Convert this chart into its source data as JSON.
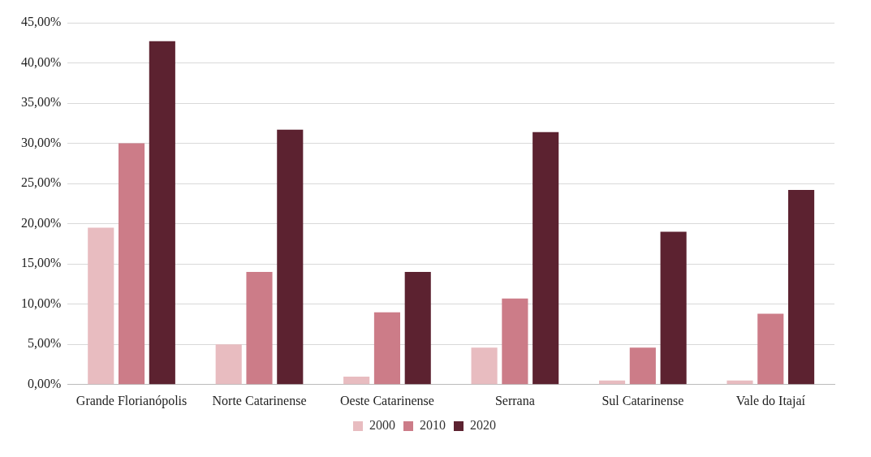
{
  "chart_data": {
    "type": "bar",
    "categories": [
      "Grande Florianópolis",
      "Norte Catarinense",
      "Oeste Catarinense",
      "Serrana",
      "Sul Catarinense",
      "Vale do Itajaí"
    ],
    "series": [
      {
        "name": "2000",
        "color": "#e8bcc0",
        "values": [
          19.5,
          5.0,
          1.0,
          4.6,
          0.5,
          0.5
        ]
      },
      {
        "name": "2010",
        "color": "#cc7c88",
        "values": [
          30.0,
          14.0,
          9.0,
          10.7,
          4.6,
          8.8
        ]
      },
      {
        "name": "2020",
        "color": "#5c2230",
        "values": [
          42.7,
          31.7,
          14.0,
          31.4,
          19.0,
          24.2
        ]
      }
    ],
    "ylim": [
      0,
      45
    ],
    "yticks": [
      {
        "value": 0,
        "label": "0,00%"
      },
      {
        "value": 5,
        "label": "5,00%"
      },
      {
        "value": 10,
        "label": "10,00%"
      },
      {
        "value": 15,
        "label": "15,00%"
      },
      {
        "value": 20,
        "label": "20,00%"
      },
      {
        "value": 25,
        "label": "25,00%"
      },
      {
        "value": 30,
        "label": "30,00%"
      },
      {
        "value": 35,
        "label": "35,00%"
      },
      {
        "value": 40,
        "label": "40,00%"
      },
      {
        "value": 45,
        "label": "45,00%"
      }
    ],
    "grid": "y",
    "legend": "bottom"
  }
}
